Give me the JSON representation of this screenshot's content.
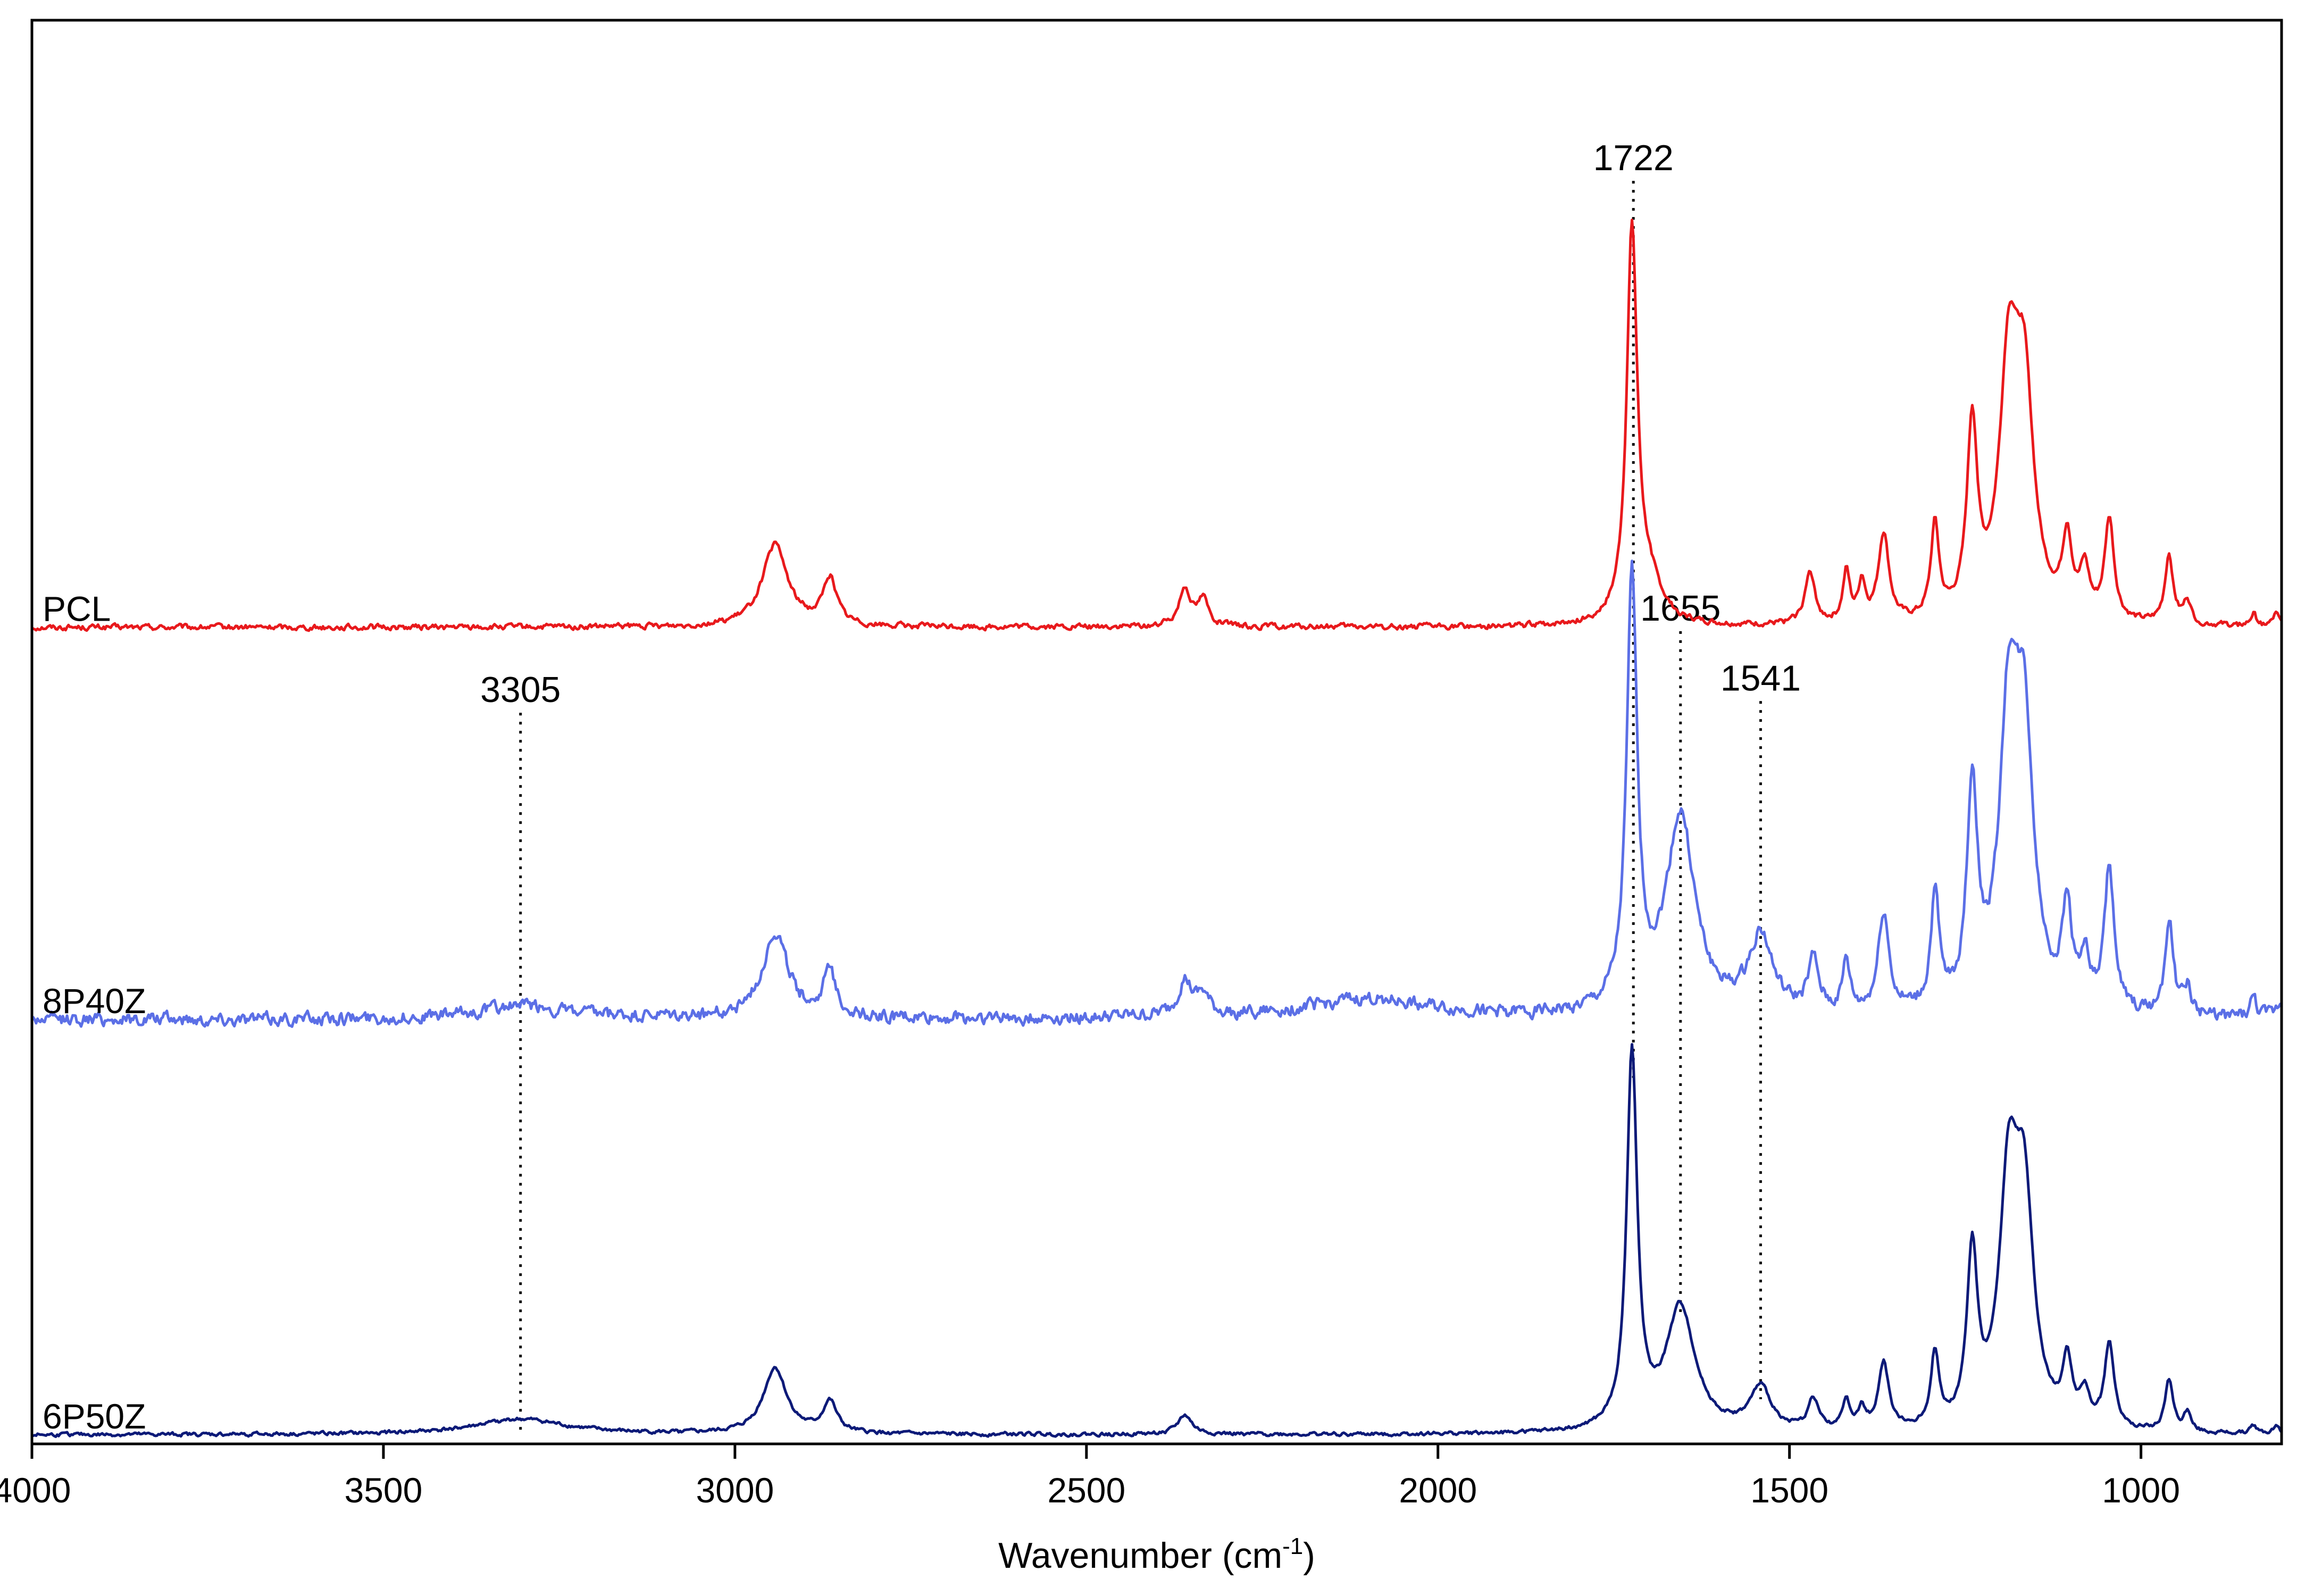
{
  "chart_data": {
    "type": "line",
    "xlabel": "Wavenumber (cm",
    "xlabel_sup": "-1",
    "xlabel_end": ")",
    "ylabel": "",
    "xlim": [
      4000,
      800
    ],
    "x_reversed": true,
    "x_ticks": [
      4000,
      3500,
      3000,
      2500,
      2000,
      1500,
      1000
    ],
    "x_tick_labels": [
      "4000",
      "3500",
      "3000",
      "2500",
      "2000",
      "1500",
      "1000"
    ],
    "y_axis_ticks": false,
    "grid": false,
    "legend": "none (series labeled inline at left)",
    "peak_markers": [
      {
        "label": "1722",
        "x": 1722
      },
      {
        "label": "1655",
        "x": 1655
      },
      {
        "label": "1541",
        "x": 1541
      },
      {
        "label": "3305",
        "x": 3305
      }
    ],
    "series": [
      {
        "name": "PCL",
        "color": "#e8191c",
        "offset": 2.08,
        "noise": 0.006,
        "peaks": [
          {
            "x": 2943,
            "h": 0.21,
            "w": 22
          },
          {
            "x": 2865,
            "h": 0.12,
            "w": 12
          },
          {
            "x": 2360,
            "h": 0.1,
            "w": 10
          },
          {
            "x": 2334,
            "h": 0.07,
            "w": 9
          },
          {
            "x": 1724,
            "h": 1.0,
            "w": 9
          },
          {
            "x": 1700,
            "h": 0.1,
            "w": 22
          },
          {
            "x": 1471,
            "h": 0.13,
            "w": 9
          },
          {
            "x": 1419,
            "h": 0.13,
            "w": 6
          },
          {
            "x": 1397,
            "h": 0.1,
            "w": 6
          },
          {
            "x": 1366,
            "h": 0.23,
            "w": 9
          },
          {
            "x": 1293,
            "h": 0.24,
            "w": 7
          },
          {
            "x": 1240,
            "h": 0.49,
            "w": 9
          },
          {
            "x": 1188,
            "h": 0.62,
            "w": 16
          },
          {
            "x": 1166,
            "h": 0.55,
            "w": 16
          },
          {
            "x": 1105,
            "h": 0.2,
            "w": 8
          },
          {
            "x": 1080,
            "h": 0.12,
            "w": 8
          },
          {
            "x": 1045,
            "h": 0.26,
            "w": 8
          },
          {
            "x": 960,
            "h": 0.18,
            "w": 7
          },
          {
            "x": 934,
            "h": 0.06,
            "w": 6
          },
          {
            "x": 840,
            "h": 0.03,
            "w": 5
          },
          {
            "x": 808,
            "h": 0.03,
            "w": 5
          }
        ]
      },
      {
        "name": "8P40Z",
        "color": "#5b6fe6",
        "offset": 1.07,
        "noise": 0.014,
        "peaks": [
          {
            "x": 3305,
            "h": 0.035,
            "w": 70
          },
          {
            "x": 2943,
            "h": 0.22,
            "w": 22
          },
          {
            "x": 2865,
            "h": 0.11,
            "w": 12
          },
          {
            "x": 2360,
            "h": 0.09,
            "w": 12
          },
          {
            "x": 2334,
            "h": 0.05,
            "w": 10
          },
          {
            "x": 2100,
            "h": 0.05,
            "w": 110
          },
          {
            "x": 1724,
            "h": 1.1,
            "w": 9
          },
          {
            "x": 1655,
            "h": 0.51,
            "w": 25
          },
          {
            "x": 1541,
            "h": 0.2,
            "w": 20
          },
          {
            "x": 1466,
            "h": 0.13,
            "w": 9
          },
          {
            "x": 1419,
            "h": 0.13,
            "w": 6
          },
          {
            "x": 1366,
            "h": 0.26,
            "w": 9
          },
          {
            "x": 1293,
            "h": 0.29,
            "w": 7
          },
          {
            "x": 1240,
            "h": 0.56,
            "w": 9
          },
          {
            "x": 1188,
            "h": 0.72,
            "w": 16
          },
          {
            "x": 1166,
            "h": 0.65,
            "w": 16
          },
          {
            "x": 1105,
            "h": 0.25,
            "w": 8
          },
          {
            "x": 1080,
            "h": 0.12,
            "w": 8
          },
          {
            "x": 1045,
            "h": 0.37,
            "w": 8
          },
          {
            "x": 960,
            "h": 0.25,
            "w": 7
          },
          {
            "x": 934,
            "h": 0.07,
            "w": 6
          },
          {
            "x": 840,
            "h": 0.05,
            "w": 5
          },
          {
            "x": 800,
            "h": 0.04,
            "w": 8
          }
        ]
      },
      {
        "name": "6P50Z",
        "color": "#0d1a78",
        "offset": 0.0,
        "noise": 0.004,
        "peaks": [
          {
            "x": 3305,
            "h": 0.04,
            "w": 80
          },
          {
            "x": 2943,
            "h": 0.17,
            "w": 20
          },
          {
            "x": 2865,
            "h": 0.08,
            "w": 12
          },
          {
            "x": 2360,
            "h": 0.05,
            "w": 12
          },
          {
            "x": 1724,
            "h": 0.97,
            "w": 9
          },
          {
            "x": 1655,
            "h": 0.32,
            "w": 25
          },
          {
            "x": 1541,
            "h": 0.11,
            "w": 18
          },
          {
            "x": 1466,
            "h": 0.08,
            "w": 9
          },
          {
            "x": 1419,
            "h": 0.08,
            "w": 6
          },
          {
            "x": 1397,
            "h": 0.05,
            "w": 6
          },
          {
            "x": 1366,
            "h": 0.17,
            "w": 9
          },
          {
            "x": 1293,
            "h": 0.19,
            "w": 7
          },
          {
            "x": 1240,
            "h": 0.44,
            "w": 9
          },
          {
            "x": 1188,
            "h": 0.6,
            "w": 16
          },
          {
            "x": 1166,
            "h": 0.54,
            "w": 16
          },
          {
            "x": 1105,
            "h": 0.16,
            "w": 8
          },
          {
            "x": 1080,
            "h": 0.08,
            "w": 8
          },
          {
            "x": 1045,
            "h": 0.22,
            "w": 8
          },
          {
            "x": 960,
            "h": 0.13,
            "w": 7
          },
          {
            "x": 934,
            "h": 0.05,
            "w": 6
          },
          {
            "x": 840,
            "h": 0.02,
            "w": 5
          },
          {
            "x": 808,
            "h": 0.02,
            "w": 5
          }
        ]
      }
    ]
  }
}
